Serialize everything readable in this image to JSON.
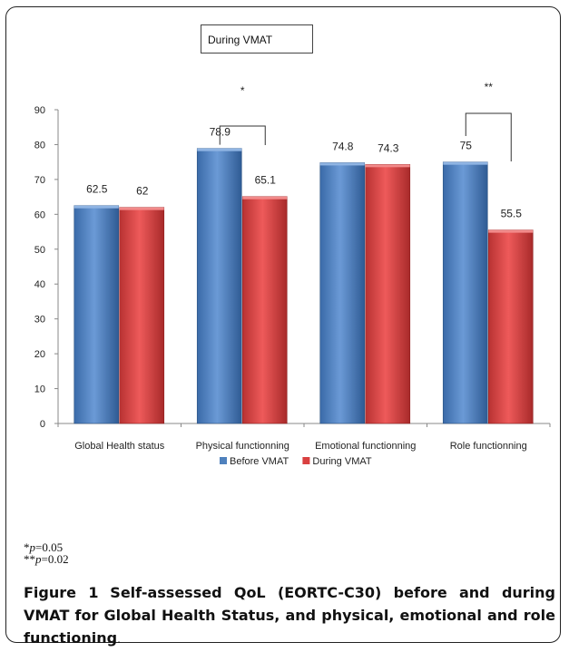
{
  "chart_data": {
    "type": "bar",
    "title": "During VMAT",
    "categories": [
      "Global Health status",
      "Physical functionning",
      "Emotional functionning",
      "Role functionning"
    ],
    "series": [
      {
        "name": "Before VMAT",
        "values": [
          62.5,
          78.9,
          74.8,
          75
        ],
        "labels": [
          "62.5",
          "78.9",
          "74.8",
          "75"
        ],
        "color": "#4f81bd"
      },
      {
        "name": "During VMAT",
        "values": [
          62,
          65.1,
          74.3,
          55.5
        ],
        "labels": [
          "62",
          "65.1",
          "74.3",
          "55.5"
        ],
        "color": "#d94040"
      }
    ],
    "ylim": [
      0,
      90
    ],
    "yticks": [
      0,
      10,
      20,
      30,
      40,
      50,
      60,
      70,
      80,
      90
    ],
    "grid": false,
    "legend_position": "bottom",
    "annotations": [
      {
        "category_index": 1,
        "text": "*"
      },
      {
        "category_index": 3,
        "text": "**"
      }
    ]
  },
  "notes": {
    "line1_marks": "*",
    "line1_var": "p",
    "line1_value": "=0.05",
    "line2_marks": "**",
    "line2_var": "p",
    "line2_value": "=0.02"
  },
  "caption": {
    "label": "Figure 1",
    "text": "Self-assessed QoL (EORTC-C30) before and during VMAT for Global Health Status, and physical, emotional and role functioning",
    "end": "."
  }
}
